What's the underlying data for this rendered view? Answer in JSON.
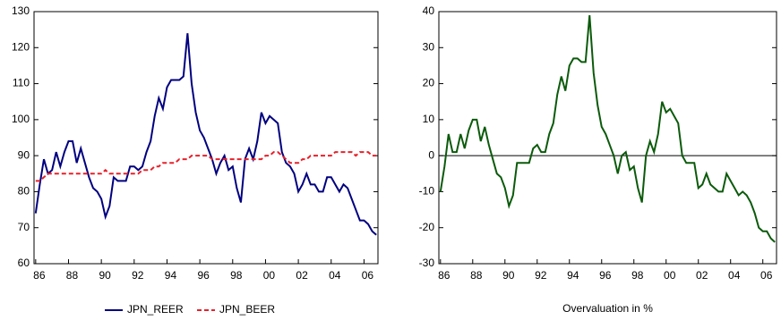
{
  "chart_data": [
    {
      "type": "line",
      "x": [
        1986,
        1986.25,
        1986.5,
        1986.75,
        1987,
        1987.25,
        1987.5,
        1987.75,
        1988,
        1988.25,
        1988.5,
        1988.75,
        1989,
        1989.25,
        1989.5,
        1989.75,
        1990,
        1990.25,
        1990.5,
        1990.75,
        1991,
        1991.25,
        1991.5,
        1991.75,
        1992,
        1992.25,
        1992.5,
        1992.75,
        1993,
        1993.25,
        1993.5,
        1993.75,
        1994,
        1994.25,
        1994.5,
        1994.75,
        1995,
        1995.25,
        1995.5,
        1995.75,
        1996,
        1996.25,
        1996.5,
        1996.75,
        1997,
        1997.25,
        1997.5,
        1997.75,
        1998,
        1998.25,
        1998.5,
        1998.75,
        1999,
        1999.25,
        1999.5,
        1999.75,
        2000,
        2000.25,
        2000.5,
        2000.75,
        2001,
        2001.25,
        2001.5,
        2001.75,
        2002,
        2002.25,
        2002.5,
        2002.75,
        2003,
        2003.25,
        2003.5,
        2003.75,
        2004,
        2004.25,
        2004.5,
        2004.75,
        2005,
        2005.25,
        2005.5,
        2005.75,
        2006,
        2006.25,
        2006.5,
        2006.75
      ],
      "series": [
        {
          "name": "JPN_REER",
          "color": "#000080",
          "dash": false,
          "values": [
            74,
            82,
            89,
            85,
            86,
            91,
            87,
            91,
            94,
            94,
            88,
            92,
            88,
            84,
            81,
            80,
            78,
            73,
            76,
            84,
            83,
            83,
            83,
            87,
            87,
            86,
            87,
            91,
            94,
            101,
            106,
            103,
            109,
            111,
            111,
            111,
            112,
            124,
            110,
            102,
            97,
            95,
            92,
            89,
            85,
            88,
            90,
            86,
            87,
            81,
            77,
            89,
            92,
            89,
            94,
            102,
            99,
            101,
            100,
            99,
            91,
            88,
            87,
            85,
            80,
            82,
            85,
            82,
            82,
            80,
            80,
            84,
            84,
            82,
            80,
            82,
            81,
            78,
            75,
            72,
            72,
            71,
            69,
            68
          ]
        },
        {
          "name": "JPN_BEER",
          "color": "#e8202a",
          "dash": true,
          "values": [
            83,
            83,
            84,
            85,
            85,
            85,
            85,
            85,
            85,
            85,
            85,
            85,
            85,
            85,
            85,
            85,
            85,
            86,
            85,
            85,
            85,
            85,
            85,
            85,
            85,
            85,
            86,
            86,
            86,
            87,
            87,
            88,
            88,
            88,
            88,
            89,
            89,
            89,
            90,
            90,
            90,
            90,
            90,
            89,
            89,
            89,
            89,
            89,
            89,
            89,
            89,
            89,
            89,
            89,
            89,
            89,
            90,
            90,
            91,
            91,
            90,
            89,
            88,
            88,
            88,
            89,
            89,
            90,
            90,
            90,
            90,
            90,
            90,
            91,
            91,
            91,
            91,
            91,
            90,
            91,
            91,
            91,
            90,
            90
          ]
        }
      ],
      "xlim": [
        1985.9,
        2006.85
      ],
      "xticks": [
        {
          "value": 1986,
          "label": "86"
        },
        {
          "value": 1988,
          "label": "88"
        },
        {
          "value": 1990,
          "label": "90"
        },
        {
          "value": 1992,
          "label": "92"
        },
        {
          "value": 1994,
          "label": "94"
        },
        {
          "value": 1996,
          "label": "96"
        },
        {
          "value": 1998,
          "label": "98"
        },
        {
          "value": 2000,
          "label": "00"
        },
        {
          "value": 2002,
          "label": "02"
        },
        {
          "value": 2004,
          "label": "04"
        },
        {
          "value": 2006,
          "label": "06"
        }
      ],
      "ylim": [
        60,
        130
      ],
      "yticks": [
        60,
        70,
        80,
        90,
        100,
        110,
        120,
        130
      ],
      "legend": "bottom"
    },
    {
      "type": "line",
      "x": [
        1986,
        1986.25,
        1986.5,
        1986.75,
        1987,
        1987.25,
        1987.5,
        1987.75,
        1988,
        1988.25,
        1988.5,
        1988.75,
        1989,
        1989.25,
        1989.5,
        1989.75,
        1990,
        1990.25,
        1990.5,
        1990.75,
        1991,
        1991.25,
        1991.5,
        1991.75,
        1992,
        1992.25,
        1992.5,
        1992.75,
        1993,
        1993.25,
        1993.5,
        1993.75,
        1994,
        1994.25,
        1994.5,
        1994.75,
        1995,
        1995.25,
        1995.5,
        1995.75,
        1996,
        1996.25,
        1996.5,
        1996.75,
        1997,
        1997.25,
        1997.5,
        1997.75,
        1998,
        1998.25,
        1998.5,
        1998.75,
        1999,
        1999.25,
        1999.5,
        1999.75,
        2000,
        2000.25,
        2000.5,
        2000.75,
        2001,
        2001.25,
        2001.5,
        2001.75,
        2002,
        2002.25,
        2002.5,
        2002.75,
        2003,
        2003.25,
        2003.5,
        2003.75,
        2004,
        2004.25,
        2004.5,
        2004.75,
        2005,
        2005.25,
        2005.5,
        2005.75,
        2006,
        2006.25,
        2006.5,
        2006.75
      ],
      "series": [
        {
          "color": "#0b5a0b",
          "dash": false,
          "values": [
            -10,
            -3,
            6,
            1,
            1,
            6,
            2,
            7,
            10,
            10,
            4,
            8,
            3,
            -1,
            -5,
            -6,
            -9,
            -14,
            -11,
            -2,
            -2,
            -2,
            -2,
            2,
            3,
            1,
            1,
            6,
            9,
            17,
            22,
            18,
            25,
            27,
            27,
            26,
            26,
            39,
            23,
            14,
            8,
            6,
            3,
            0,
            -5,
            0,
            1,
            -4,
            -3,
            -9,
            -13,
            0,
            4,
            1,
            6,
            15,
            12,
            13,
            11,
            9,
            0,
            -2,
            -2,
            -2,
            -9,
            -8,
            -5,
            -8,
            -9,
            -10,
            -10,
            -5,
            -7,
            -9,
            -11,
            -10,
            -11,
            -13,
            -16,
            -20,
            -21,
            -21,
            -23,
            -24
          ]
        }
      ],
      "xlabel": "Overvaluation in %",
      "xlim": [
        1985.9,
        2006.85
      ],
      "xticks": [
        {
          "value": 1986,
          "label": "86"
        },
        {
          "value": 1988,
          "label": "88"
        },
        {
          "value": 1990,
          "label": "90"
        },
        {
          "value": 1992,
          "label": "92"
        },
        {
          "value": 1994,
          "label": "94"
        },
        {
          "value": 1996,
          "label": "96"
        },
        {
          "value": 1998,
          "label": "98"
        },
        {
          "value": 2000,
          "label": "00"
        },
        {
          "value": 2002,
          "label": "02"
        },
        {
          "value": 2004,
          "label": "04"
        },
        {
          "value": 2006,
          "label": "06"
        }
      ],
      "ylim": [
        -30,
        40
      ],
      "yticks": [
        -30,
        -20,
        -10,
        0,
        10,
        20,
        30,
        40
      ],
      "hline": 0
    }
  ]
}
